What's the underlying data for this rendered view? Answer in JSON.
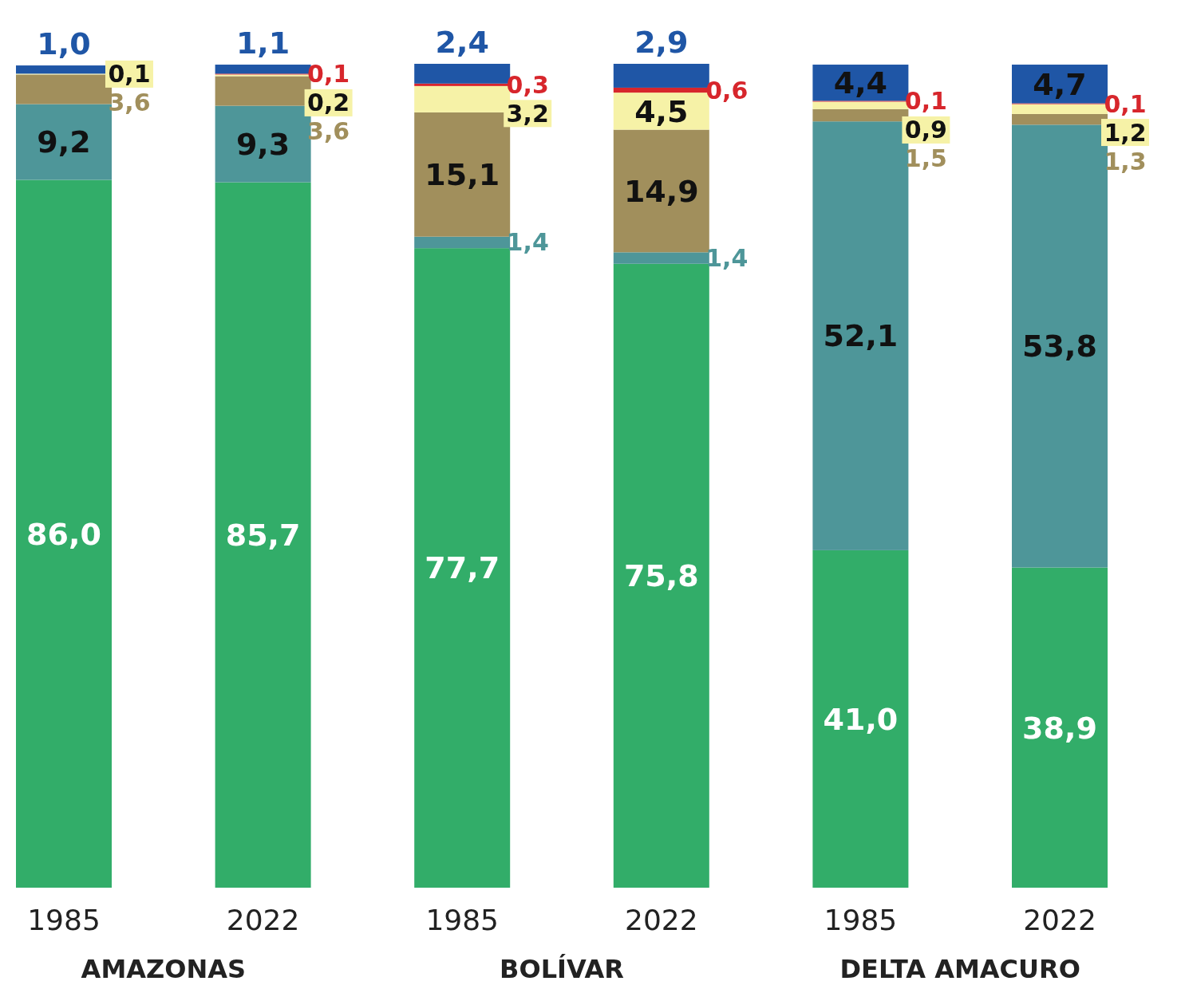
{
  "chart_data": {
    "type": "bar",
    "stacked": true,
    "categories": [
      "1985",
      "2022",
      "1985",
      "2022",
      "1985",
      "2022"
    ],
    "data_labels": false,
    "series": [
      {
        "color": "#32ad69",
        "values": [
          86.0,
          85.7,
          77.7,
          75.8,
          41.0,
          38.9
        ],
        "value_labels": [
          "86,0",
          "85,7",
          "77,7",
          "75,8",
          "41,0",
          "38,9"
        ]
      },
      {
        "color": "#4e9699",
        "values": [
          9.2,
          9.3,
          1.4,
          1.4,
          52.1,
          53.8
        ],
        "value_labels": [
          "9,2",
          "9,3",
          "1,4",
          "1,4",
          "52,1",
          "53,8"
        ]
      },
      {
        "color": "#a18f5c",
        "values": [
          3.6,
          3.6,
          15.1,
          14.9,
          1.5,
          1.3
        ],
        "value_labels": [
          "3,6",
          "3,6",
          "15,1",
          "14,9",
          "1,5",
          "1,3"
        ]
      },
      {
        "color": "#f6f2a7",
        "values": [
          0.1,
          0.2,
          3.2,
          4.5,
          0.9,
          1.2
        ],
        "value_labels": [
          "0,1",
          "0,2",
          "3,2",
          "4,5",
          "0,9",
          "1,2"
        ]
      },
      {
        "color": "#d7262c",
        "values": [
          null,
          0.1,
          0.3,
          0.6,
          0.1,
          0.1
        ],
        "value_labels": [
          null,
          "0,1",
          "0,3",
          "0,6",
          "0,1",
          "0,1"
        ]
      },
      {
        "color": "#1f56a6",
        "values": [
          1.0,
          1.1,
          2.4,
          2.9,
          4.4,
          4.7
        ],
        "value_labels": [
          "1,0",
          "1,1",
          "2,4",
          "2,9",
          "4,4",
          "4,7"
        ]
      }
    ],
    "annotations": [
      "AMAZONAS",
      "BOLÍVAR",
      "DELTA AMACURO"
    ]
  }
}
